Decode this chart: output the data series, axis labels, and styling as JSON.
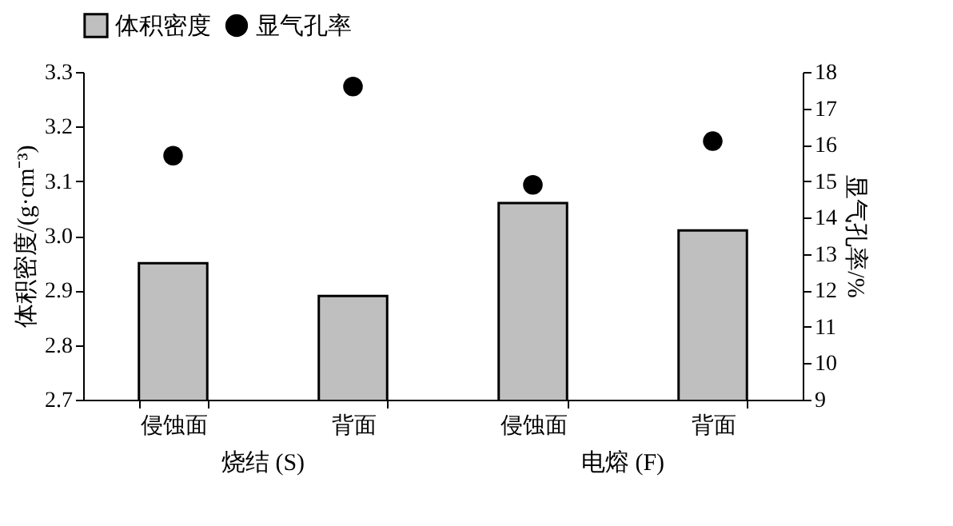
{
  "chart_data": {
    "type": "bar",
    "categories": [
      "侵蚀面",
      "背面",
      "侵蚀面",
      "背面"
    ],
    "series": [
      {
        "name": "体积密度",
        "color": "#bfbfbf",
        "values": [
          2.95,
          2.89,
          3.06,
          3.01
        ]
      },
      {
        "name": "显气孔率",
        "type": "scatter",
        "axis": "y2",
        "color": "#000000",
        "values": [
          15.7,
          17.6,
          14.9,
          16.1
        ]
      }
    ],
    "ylabel": "体积密度/(g·cm⁻³)",
    "y2label": "显气孔率/%",
    "ylim": [
      2.7,
      3.3
    ],
    "yticks": [
      2.7,
      2.8,
      2.9,
      {
        "value": 3,
        "label": "3.0"
      },
      3.1,
      3.2,
      3.3
    ],
    "y2lim": [
      9,
      18
    ],
    "y2ticks": [
      9,
      10,
      11,
      12,
      13,
      14,
      15,
      16,
      17,
      18
    ],
    "annotations": [
      "烧结 (S)",
      "电熔 (F)"
    ],
    "legend": "top",
    "grid": false,
    "marker": "circle"
  }
}
